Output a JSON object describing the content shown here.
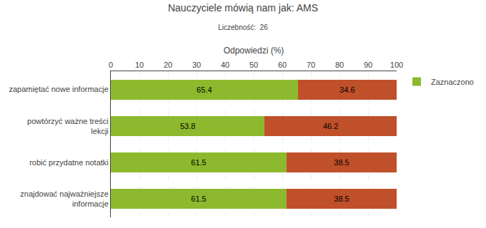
{
  "chart_data": {
    "type": "bar",
    "orientation": "horizontal",
    "stacked": true,
    "title": "Nauczyciele mówią nam jak: AMS",
    "subtitle": "Liczebność:  26",
    "xlabel": "Odpowiedzi (%)",
    "categories": [
      "zapamiętać nowe informacje",
      "powtórzyć ważne treści\nlekcji",
      "robić przydatne notatki",
      "znajdować najważniejsze\ninformacje"
    ],
    "series": [
      {
        "name": "Zaznaczono",
        "color": "#8DB92E",
        "values": [
          65.4,
          53.8,
          61.5,
          61.5
        ]
      },
      {
        "color": "#C0502A",
        "values": [
          34.6,
          46.2,
          38.5,
          38.5
        ]
      }
    ],
    "xlim": [
      0,
      100
    ],
    "xticks": [
      0,
      10,
      20,
      30,
      40,
      50,
      60,
      70,
      80,
      90,
      100
    ],
    "grid": true,
    "data_labels": true,
    "legend": "upper right"
  }
}
